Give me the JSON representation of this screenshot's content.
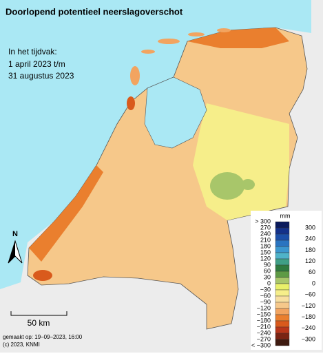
{
  "title": "Doorlopend potentieel neerslagoverschot",
  "period": {
    "label": "In het tijdvak:",
    "start": "1 april 2023 t/m",
    "end": "31 augustus 2023"
  },
  "north": "N",
  "scale_bar": "50 km",
  "credits": [
    "gemaakt op: 19–09–2023, 16:00",
    "(c) 2023, KNMI"
  ],
  "legend": {
    "unit": "mm",
    "bounds": [
      "> 300",
      "270",
      "240",
      "210",
      "180",
      "150",
      "120",
      "90",
      "60",
      "30",
      "0",
      "−30",
      "−60",
      "−90",
      "−120",
      "−150",
      "−180",
      "−210",
      "−240",
      "−270",
      "< −300"
    ],
    "ticks": [
      "300",
      "240",
      "180",
      "120",
      "60",
      "0",
      "−60",
      "−120",
      "−180",
      "−240",
      "−300"
    ],
    "colors": [
      "#0a1a5c",
      "#14318a",
      "#1c4fa8",
      "#2a74c0",
      "#3c97cf",
      "#4fb3c9",
      "#3f9f86",
      "#2f7a3f",
      "#5e9a45",
      "#a8c66a",
      "#e9f06a",
      "#f6ee8a",
      "#f8dfa0",
      "#f6c88a",
      "#f2a460",
      "#ea7f2e",
      "#d95a1c",
      "#b8361a",
      "#7a2414",
      "#3e1a10"
    ]
  }
}
